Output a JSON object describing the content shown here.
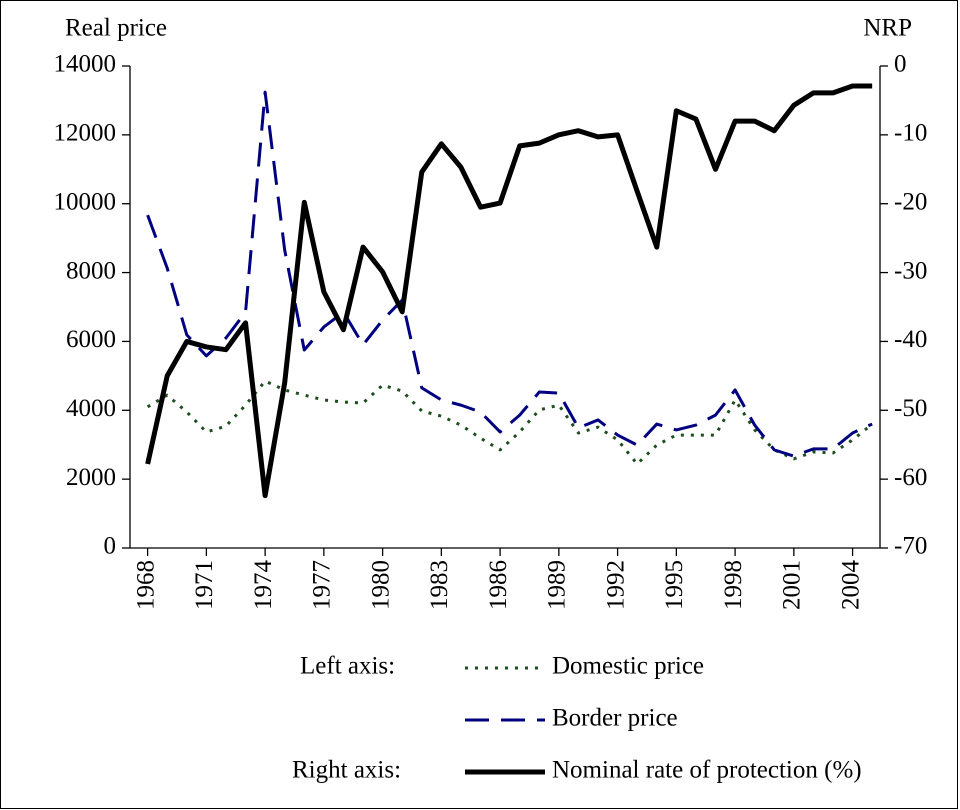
{
  "chart_data": {
    "type": "line",
    "y_label": "Real price",
    "y2_label": "NRP",
    "x": [
      1968,
      1969,
      1970,
      1971,
      1972,
      1973,
      1974,
      1975,
      1976,
      1977,
      1978,
      1979,
      1980,
      1981,
      1982,
      1983,
      1984,
      1985,
      1986,
      1987,
      1988,
      1989,
      1990,
      1991,
      1992,
      1993,
      1994,
      1995,
      1996,
      1997,
      1998,
      1999,
      2000,
      2001,
      2002,
      2003,
      2004,
      2005
    ],
    "xlim": [
      1967.1,
      2005.4
    ],
    "xticks": [
      1968,
      1971,
      1974,
      1977,
      1980,
      1983,
      1986,
      1989,
      1992,
      1995,
      1998,
      2001,
      2004
    ],
    "ylim": [
      0,
      14000
    ],
    "yticks": [
      0,
      2000,
      4000,
      6000,
      8000,
      10000,
      12000,
      14000
    ],
    "y2lim": [
      -70,
      0
    ],
    "y2ticks": [
      -70,
      -60,
      -50,
      -40,
      -30,
      -20,
      -10,
      0
    ],
    "legend_groups": [
      "Left axis:",
      "Right axis:"
    ],
    "series": [
      {
        "name": "Domestic price",
        "color": "#1e4d1e",
        "style": "dotted",
        "axis": "y",
        "values": [
          4100,
          4440,
          3950,
          3370,
          3540,
          4150,
          4850,
          4590,
          4440,
          4300,
          4240,
          4210,
          4730,
          4560,
          3980,
          3830,
          3570,
          3190,
          2850,
          3370,
          4010,
          4150,
          3340,
          3510,
          3140,
          2440,
          2990,
          3280,
          3280,
          3280,
          4300,
          3430,
          2850,
          2590,
          2790,
          2760,
          3140,
          3600
        ]
      },
      {
        "name": "Border price",
        "color": "#000080",
        "style": "dashed",
        "axis": "y",
        "values": [
          9670,
          8130,
          6190,
          5580,
          6100,
          6850,
          13240,
          8650,
          5750,
          6420,
          6850,
          5900,
          6620,
          7200,
          4650,
          4300,
          4150,
          3950,
          3370,
          3860,
          4530,
          4500,
          3490,
          3720,
          3280,
          2990,
          3600,
          3430,
          3570,
          3860,
          4590,
          3570,
          2850,
          2670,
          2880,
          2880,
          3340,
          3600
        ]
      },
      {
        "name": "Nominal rate of protection (%)",
        "color": "#000000",
        "style": "solid",
        "axis": "y2",
        "values": [
          -57.8,
          -45,
          -40,
          -40.8,
          -41.2,
          -37.3,
          -62.4,
          -46,
          -19.8,
          -32.8,
          -38.3,
          -26.3,
          -29.9,
          -35.7,
          -15.4,
          -11.3,
          -14.7,
          -20.5,
          -19.9,
          -11.6,
          -11.2,
          -10,
          -9.4,
          -10.3,
          -10,
          -18.2,
          -26.3,
          -6.5,
          -7.7,
          -15,
          -8,
          -8,
          -9.4,
          -5.7,
          -3.9,
          -3.9,
          -2.9,
          -2.9
        ]
      }
    ]
  }
}
